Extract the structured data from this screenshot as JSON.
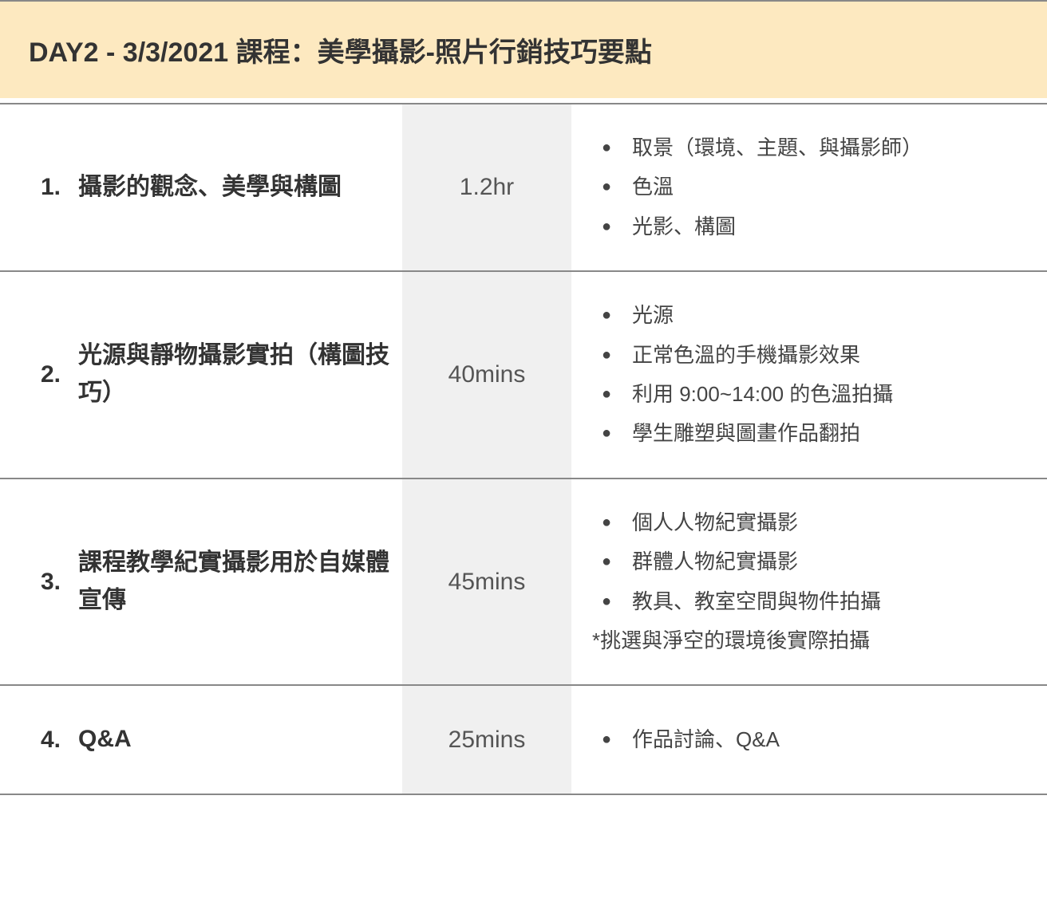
{
  "colors": {
    "header_bg": "#fde9c0",
    "duration_bg": "#f0f0f0",
    "text_dark": "#333333",
    "text_medium": "#555555",
    "border": "#888888"
  },
  "header": {
    "title": "DAY2 - 3/3/2021 課程：美學攝影-照片行銷技巧要點"
  },
  "rows": [
    {
      "idx": "1.",
      "title": "攝影的觀念、美學與構圖",
      "duration": "1.2hr",
      "details": [
        "取景（環境、主題、與攝影師）",
        "色溫",
        "光影、構圖"
      ],
      "note": ""
    },
    {
      "idx": "2.",
      "title": "光源與靜物攝影實拍（構圖技巧）",
      "duration": "40mins",
      "details": [
        "光源",
        "正常色溫的手機攝影效果",
        "利用 9:00~14:00 的色溫拍攝",
        "學生雕塑與圖畫作品翻拍"
      ],
      "note": ""
    },
    {
      "idx": "3.",
      "title": "課程教學紀實攝影用於自媒體宣傳",
      "duration": "45mins",
      "details": [
        "個人人物紀實攝影",
        "群體人物紀實攝影",
        "教具、教室空間與物件拍攝"
      ],
      "note": "*挑選與淨空的環境後實際拍攝"
    },
    {
      "idx": "4.",
      "title": "Q&A",
      "duration": "25mins",
      "details": [
        "作品討論、Q&A"
      ],
      "note": ""
    }
  ]
}
